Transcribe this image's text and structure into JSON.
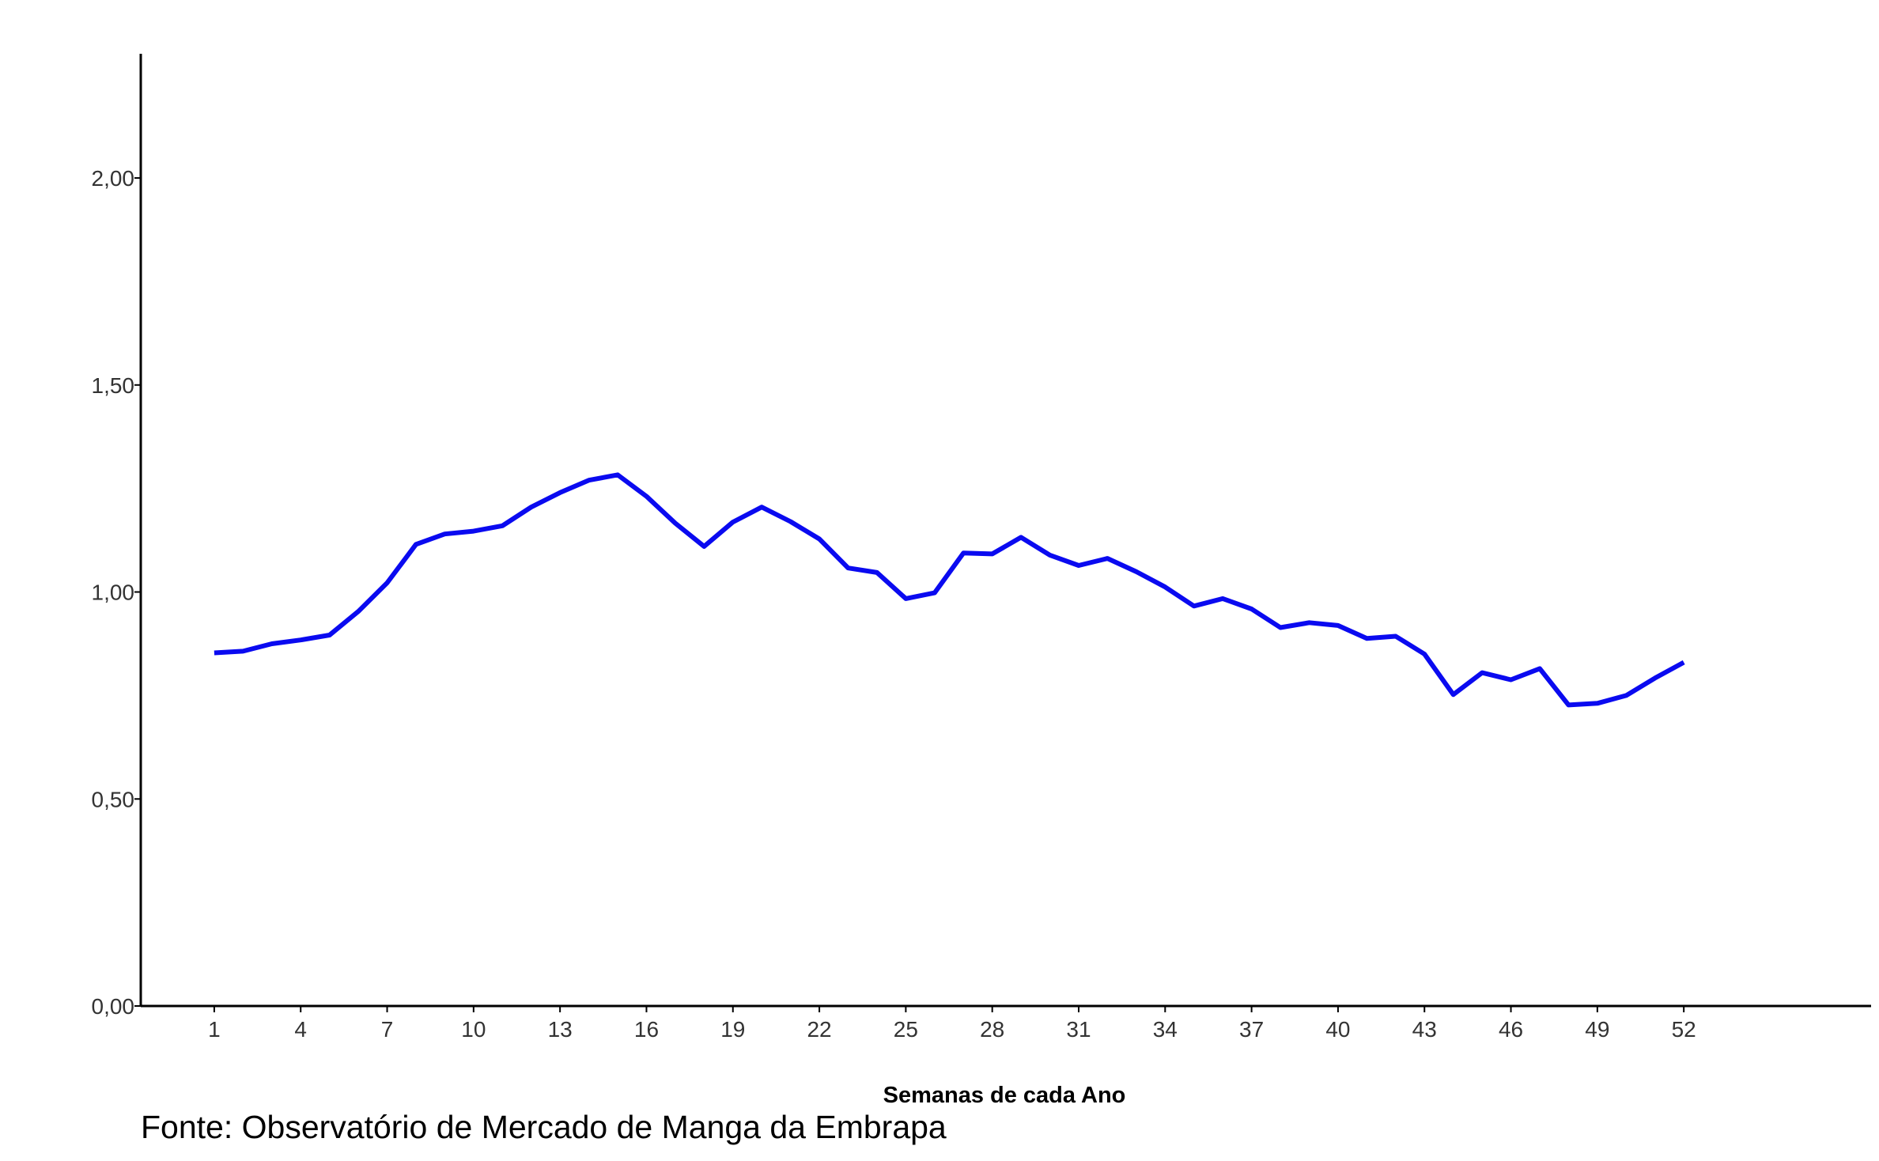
{
  "chart_data": {
    "type": "line",
    "title": "",
    "xlabel": "Semanas de cada Ano",
    "ylabel": "",
    "x": [
      1,
      2,
      3,
      4,
      5,
      6,
      7,
      8,
      9,
      10,
      11,
      12,
      13,
      14,
      15,
      16,
      17,
      18,
      19,
      20,
      21,
      22,
      23,
      24,
      25,
      26,
      27,
      28,
      29,
      30,
      31,
      32,
      33,
      34,
      35,
      36,
      37,
      38,
      39,
      40,
      41,
      42,
      43,
      44,
      45,
      46,
      47,
      48,
      49,
      50,
      51,
      52
    ],
    "series": [
      {
        "values": [
          0.853,
          0.857,
          0.875,
          0.884,
          0.896,
          0.953,
          1.022,
          1.115,
          1.14,
          1.147,
          1.16,
          1.205,
          1.24,
          1.27,
          1.283,
          1.231,
          1.166,
          1.11,
          1.169,
          1.205,
          1.17,
          1.128,
          1.058,
          1.047,
          0.984,
          0.998,
          1.094,
          1.092,
          1.132,
          1.089,
          1.064,
          1.081,
          1.049,
          1.012,
          0.966,
          0.984,
          0.959,
          0.914,
          0.926,
          0.919,
          0.888,
          0.893,
          0.85,
          0.752,
          0.805,
          0.788,
          0.815,
          0.727,
          0.731,
          0.75,
          0.792,
          0.83
        ],
        "color": "#0a0af0"
      }
    ],
    "xticks": [
      1,
      4,
      7,
      10,
      13,
      16,
      19,
      22,
      25,
      28,
      31,
      34,
      37,
      40,
      43,
      46,
      49,
      52
    ],
    "xtick_labels": [
      "1",
      "4",
      "7",
      "10",
      "13",
      "16",
      "19",
      "22",
      "25",
      "28",
      "31",
      "34",
      "37",
      "40",
      "43",
      "46",
      "49",
      "52"
    ],
    "xlim": [
      -1.55,
      58.5
    ],
    "yticks": [
      0,
      0.5,
      1,
      1.5,
      2
    ],
    "ytick_labels": [
      "0,00",
      "0,50",
      "1,00",
      "1,50",
      "2,00"
    ],
    "ylim": [
      0,
      2.3
    ],
    "grid": false,
    "legend": "none",
    "axis_color": "#000000",
    "tick_label_color": "#333333"
  },
  "caption": "Fonte: Observatório de Mercado de Manga da Embrapa"
}
